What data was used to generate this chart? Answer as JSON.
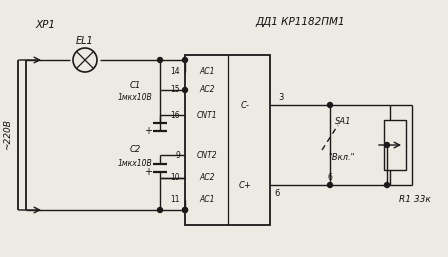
{
  "bg_color": "#ede9e3",
  "line_color": "#1a1a1a",
  "text_color": "#111111",
  "figsize": [
    4.48,
    2.57
  ],
  "dpi": 100,
  "labels": {
    "xp1": "ХР1",
    "el1": "ЕL1",
    "dd1": "ДД1 КР1182ПМ1",
    "c1": "С1",
    "c1_val": "1мкх10В",
    "c2": "С2",
    "c2_val": "1мкх10В",
    "voltage": "~220В",
    "ac1_top": "АС1",
    "ac2_top": "АС2",
    "cnt1": "СNТ1",
    "cn12": "СNТ2",
    "ac2_bot": "АС2",
    "ac1_bot": "АС1",
    "c_minus": "С-",
    "c_plus": "С+",
    "pin14": "14",
    "pin15": "15",
    "pin16": "16",
    "pin9": "9",
    "pin10": "10",
    "pin11": "11",
    "pin3": "3",
    "pin6": "6",
    "sa1": "SА1",
    "vkl": "Вкл.\"",
    "r1": "R1 33к"
  }
}
